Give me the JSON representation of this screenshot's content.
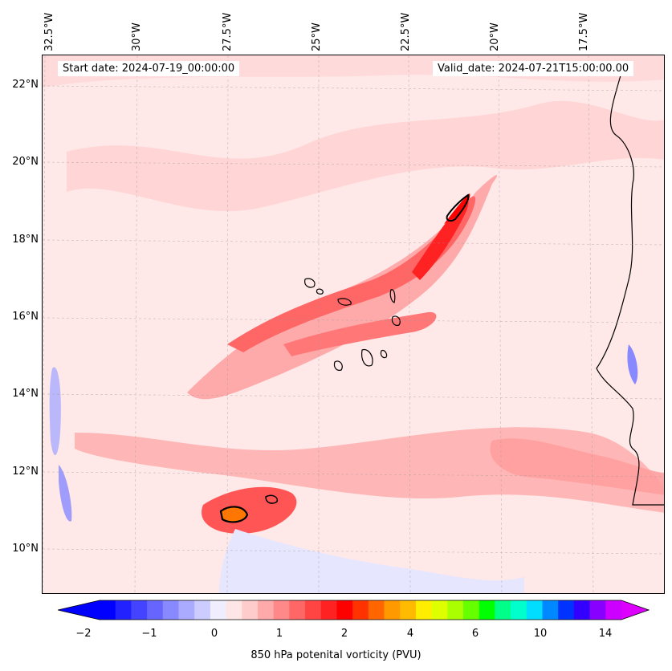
{
  "map": {
    "start_date": "Start date: 2024-07-19_00:00:00",
    "valid_date": "Valid_date: 2024-07-21T15:00:00.00",
    "longitude_labels": [
      "32.5°W",
      "30°W",
      "27.5°W",
      "25°W",
      "22.5°W",
      "20°W",
      "17.5°W"
    ],
    "latitude_labels": [
      "22°N",
      "20°N",
      "18°N",
      "16°N",
      "14°N",
      "12°N",
      "10°N"
    ],
    "lon_range": [
      -33,
      -15.5
    ],
    "lat_range": [
      8.8,
      22.8
    ],
    "colorbar": {
      "label": "850 hPa potenital vorticity (PVU)",
      "tick_labels": [
        "−2",
        "−1",
        "0",
        "1",
        "2",
        "4",
        "6",
        "10",
        "14"
      ],
      "colors": [
        "#0000ff",
        "#2222ff",
        "#4444ff",
        "#6666ff",
        "#8888ff",
        "#aaaaff",
        "#ccccff",
        "#eeeeff",
        "#ffe6e6",
        "#ffcccc",
        "#ffaaaa",
        "#ff8888",
        "#ff6666",
        "#ff4444",
        "#ff2222",
        "#ff0000",
        "#ff3300",
        "#ff6600",
        "#ff9900",
        "#ffbb00",
        "#ffee00",
        "#ddff00",
        "#aaff00",
        "#66ff00",
        "#00ff00",
        "#00ff88",
        "#00ffcc",
        "#00ddff",
        "#0088ff",
        "#0033ff",
        "#3300ff",
        "#8800ff",
        "#cc00ff"
      ],
      "extend_low": "#0000ff",
      "extend_high": "#dd00ff"
    }
  }
}
